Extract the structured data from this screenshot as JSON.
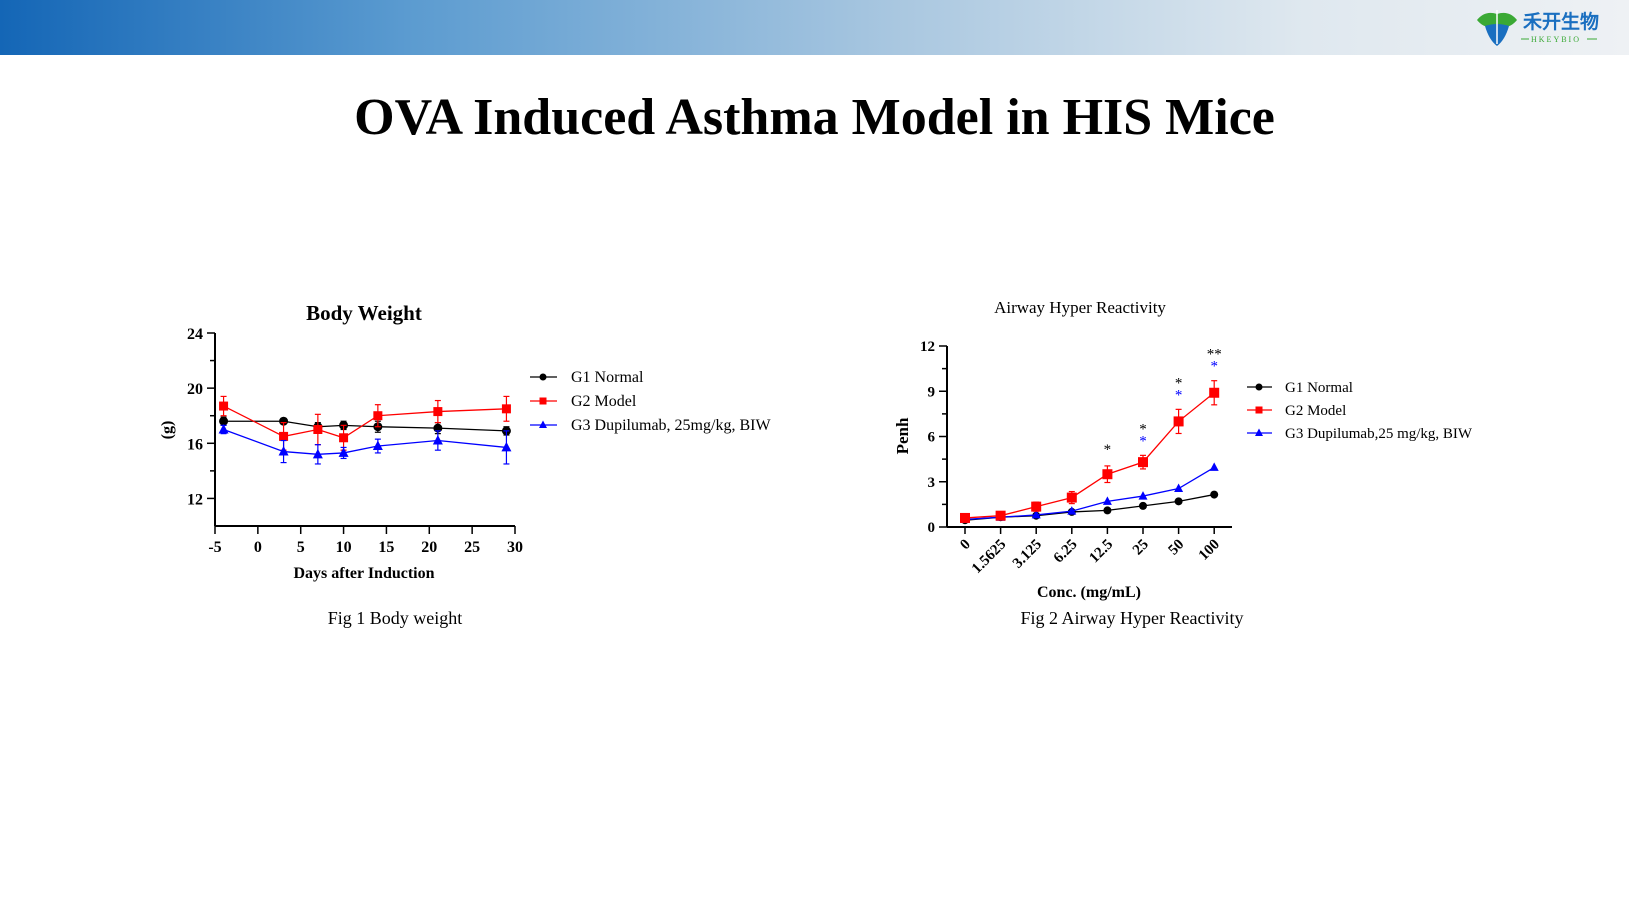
{
  "header": {
    "logo_text": "禾开生物",
    "logo_subtext": "HKEYBIO",
    "logo_colors": {
      "green": "#3aa935",
      "blue": "#1a6fc0"
    }
  },
  "slide_title": "OVA Induced Asthma Model in HIS Mice",
  "series_colors": {
    "G1": "#000000",
    "G2": "#ff0000",
    "G3": "#0000ff"
  },
  "chart_data": [
    {
      "type": "line",
      "title": "Body Weight",
      "xlabel": "Days after Induction",
      "ylabel": "(g)",
      "caption": "Fig 1 Body weight",
      "xlim": [
        -5,
        30
      ],
      "ylim": [
        10,
        24
      ],
      "xticks": [
        -5,
        0,
        5,
        10,
        15,
        20,
        25,
        30
      ],
      "yticks": [
        12,
        16,
        20,
        24
      ],
      "x": [
        -4,
        3,
        7,
        10,
        14,
        21,
        29
      ],
      "legend_position": "right",
      "grid": false,
      "series": [
        {
          "name": "G1 Normal",
          "marker": "circle",
          "values": [
            17.6,
            17.6,
            17.2,
            17.3,
            17.2,
            17.1,
            16.9
          ],
          "errors": [
            0.3,
            0.2,
            0.3,
            0.3,
            0.4,
            0.4,
            0.3
          ]
        },
        {
          "name": "G2 Model",
          "marker": "square",
          "values": [
            18.7,
            16.5,
            17.0,
            16.4,
            18.0,
            18.3,
            18.5
          ],
          "errors": [
            0.7,
            1.0,
            1.1,
            0.9,
            0.8,
            0.8,
            0.9
          ]
        },
        {
          "name": "G3 Dupilumab, 25mg/kg, BIW",
          "marker": "triangle",
          "values": [
            17.0,
            15.4,
            15.2,
            15.3,
            15.8,
            16.2,
            15.7
          ],
          "errors": [
            0.3,
            0.8,
            0.7,
            0.4,
            0.5,
            0.7,
            1.2
          ]
        }
      ]
    },
    {
      "type": "line",
      "title": "Airway Hyper Reactivity",
      "xlabel": "Conc. (mg/mL)",
      "ylabel": "Penh",
      "caption": "Fig 2 Airway Hyper Reactivity",
      "categories": [
        "0",
        "1.5625",
        "3.125",
        "6.25",
        "12.5",
        "25",
        "50",
        "100"
      ],
      "ylim": [
        0,
        12
      ],
      "yticks": [
        0,
        3,
        6,
        9,
        12
      ],
      "legend_position": "right",
      "grid": false,
      "series": [
        {
          "name": "G1 Normal",
          "marker": "circle",
          "values": [
            0.45,
            0.65,
            0.75,
            1.0,
            1.1,
            1.4,
            1.7,
            2.15
          ],
          "errors": [
            0.05,
            0.05,
            0.05,
            0.05,
            0.05,
            0.05,
            0.08,
            0.1
          ]
        },
        {
          "name": "G2 Model",
          "marker": "square",
          "values": [
            0.6,
            0.75,
            1.35,
            1.95,
            3.5,
            4.3,
            7.0,
            8.9
          ],
          "errors": [
            0.1,
            0.1,
            0.3,
            0.4,
            0.55,
            0.45,
            0.8,
            0.8
          ]
        },
        {
          "name": "G3 Dupilumab,25 mg/kg, BIW",
          "marker": "triangle",
          "values": [
            0.5,
            0.65,
            0.8,
            1.05,
            1.7,
            2.05,
            2.55,
            3.95
          ],
          "errors": [
            0.05,
            0.05,
            0.05,
            0.08,
            0.1,
            0.1,
            0.1,
            0.15
          ]
        }
      ],
      "annotations": [
        {
          "category": "12.5",
          "black": "*",
          "blue": ""
        },
        {
          "category": "25",
          "black": "*",
          "blue": "*"
        },
        {
          "category": "50",
          "black": "*",
          "blue": "*"
        },
        {
          "category": "100",
          "black": "**",
          "blue": "*"
        }
      ]
    }
  ]
}
